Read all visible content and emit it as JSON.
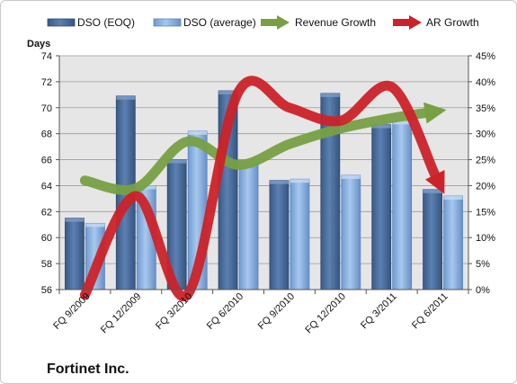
{
  "chart_data": {
    "type": "bar",
    "company": "Fortinet Inc.",
    "y_left_label": "Days",
    "y_left_range": [
      56,
      74
    ],
    "y_left_ticks": [
      "74",
      "72",
      "70",
      "68",
      "66",
      "64",
      "62",
      "60",
      "58",
      "56"
    ],
    "y_right_range": [
      0,
      45
    ],
    "y_right_ticks": [
      "45%",
      "40%",
      "35%",
      "30%",
      "25%",
      "20%",
      "15%",
      "10%",
      "5%",
      "0%"
    ],
    "categories": [
      "FQ 9/2009",
      "FQ 12/2009",
      "FQ 3/2010",
      "FQ 6/2010",
      "FQ 9/2010",
      "FQ 12/2010",
      "FQ 3/2011",
      "FQ 6/2011"
    ],
    "grid": true,
    "legend_position": "top",
    "series": [
      {
        "name": "DSO (EOQ)",
        "kind": "bar",
        "axis": "left",
        "color": "#4a6e9e",
        "values": [
          61.5,
          70.9,
          66.0,
          71.3,
          64.4,
          71.1,
          68.7,
          63.7
        ]
      },
      {
        "name": "DSO (average)",
        "kind": "bar",
        "axis": "left",
        "color": "#8db3e2",
        "values": [
          61.1,
          64.0,
          68.2,
          66.0,
          64.5,
          64.8,
          69.0,
          63.2
        ]
      },
      {
        "name": "Revenue Growth",
        "kind": "line",
        "axis": "right",
        "color": "#77a043",
        "values": [
          21,
          19.5,
          28.5,
          24,
          28,
          31,
          33,
          34.5
        ]
      },
      {
        "name": "AR Growth",
        "kind": "line",
        "axis": "right",
        "color": "#cc2229",
        "values": [
          -1,
          18,
          -1,
          38,
          35,
          32.5,
          39,
          19
        ]
      }
    ]
  }
}
